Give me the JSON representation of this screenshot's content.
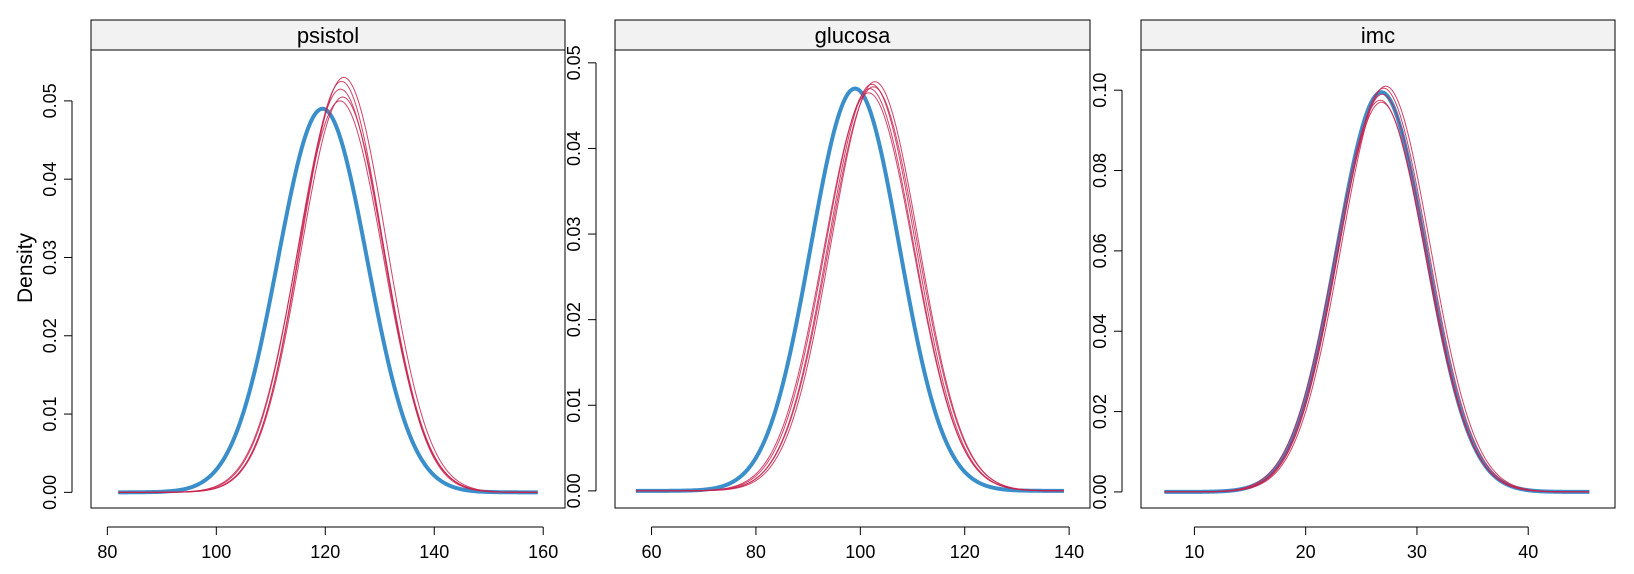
{
  "figure": {
    "ylabel": "Density"
  },
  "colors": {
    "observed": "#3A8FCB",
    "imputed": "#C8234F",
    "strip_bg": "#F2F2F2",
    "frame": "#000000"
  },
  "chart_data": [
    {
      "type": "line",
      "title": "psistol",
      "xlabel": "",
      "ylabel": "Density",
      "xlim": [
        77,
        164
      ],
      "ylim": [
        -0.002,
        0.0565
      ],
      "xticks": [
        80,
        100,
        120,
        140,
        160
      ],
      "xtick_labels": [
        "80",
        "100",
        "120",
        "140",
        "160"
      ],
      "yticks": [
        0,
        0.01,
        0.02,
        0.03,
        0.04,
        0.05
      ],
      "ytick_labels": [
        "0.00",
        "0.01",
        "0.02",
        "0.03",
        "0.04",
        "0.05"
      ],
      "range": [
        82,
        159
      ],
      "observed": {
        "mean": 119.5,
        "sd": 8.2,
        "peak": 0.049
      },
      "imputed": [
        {
          "mean": 123.0,
          "sd": 7.6,
          "peak": 0.0525
        },
        {
          "mean": 122.8,
          "sd": 7.8,
          "peak": 0.0515
        },
        {
          "mean": 123.2,
          "sd": 7.7,
          "peak": 0.0505
        },
        {
          "mean": 122.7,
          "sd": 7.9,
          "peak": 0.05
        },
        {
          "mean": 123.4,
          "sd": 7.8,
          "peak": 0.053
        }
      ]
    },
    {
      "type": "line",
      "title": "glucosa",
      "xlabel": "",
      "ylabel": "",
      "xlim": [
        53,
        144
      ],
      "ylim": [
        -0.002,
        0.0515
      ],
      "xticks": [
        60,
        80,
        100,
        120,
        140
      ],
      "xtick_labels": [
        "60",
        "80",
        "100",
        "120",
        "140"
      ],
      "yticks": [
        0,
        0.01,
        0.02,
        0.03,
        0.04,
        0.05
      ],
      "ytick_labels": [
        "0.00",
        "0.01",
        "0.02",
        "0.03",
        "0.04",
        "0.05"
      ],
      "range": [
        57,
        139
      ],
      "observed": {
        "mean": 99.0,
        "sd": 8.5,
        "peak": 0.047
      },
      "imputed": [
        {
          "mean": 102.2,
          "sd": 8.4,
          "peak": 0.0475
        },
        {
          "mean": 101.8,
          "sd": 8.5,
          "peak": 0.047
        },
        {
          "mean": 102.8,
          "sd": 8.4,
          "peak": 0.0478
        },
        {
          "mean": 101.6,
          "sd": 8.6,
          "peak": 0.0465
        },
        {
          "mean": 102.5,
          "sd": 8.5,
          "peak": 0.0472
        }
      ]
    },
    {
      "type": "line",
      "title": "imc",
      "xlabel": "",
      "ylabel": "",
      "xlim": [
        5.2,
        47.8
      ],
      "ylim": [
        -0.004,
        0.11
      ],
      "xticks": [
        10,
        20,
        30,
        40
      ],
      "xtick_labels": [
        "10",
        "20",
        "30",
        "40"
      ],
      "yticks": [
        0,
        0.02,
        0.04,
        0.06,
        0.08,
        0.1
      ],
      "ytick_labels": [
        "0.00",
        "0.02",
        "0.04",
        "0.06",
        "0.08",
        "0.10"
      ],
      "range": [
        7.3,
        45.5
      ],
      "observed": {
        "mean": 26.8,
        "sd": 4.0,
        "peak": 0.0995
      },
      "imputed": [
        {
          "mean": 27.0,
          "sd": 4.0,
          "peak": 0.1005
        },
        {
          "mean": 26.7,
          "sd": 4.05,
          "peak": 0.0975
        },
        {
          "mean": 26.9,
          "sd": 3.95,
          "peak": 0.099
        },
        {
          "mean": 26.8,
          "sd": 4.0,
          "peak": 0.097
        },
        {
          "mean": 27.2,
          "sd": 4.0,
          "peak": 0.101
        }
      ]
    }
  ]
}
